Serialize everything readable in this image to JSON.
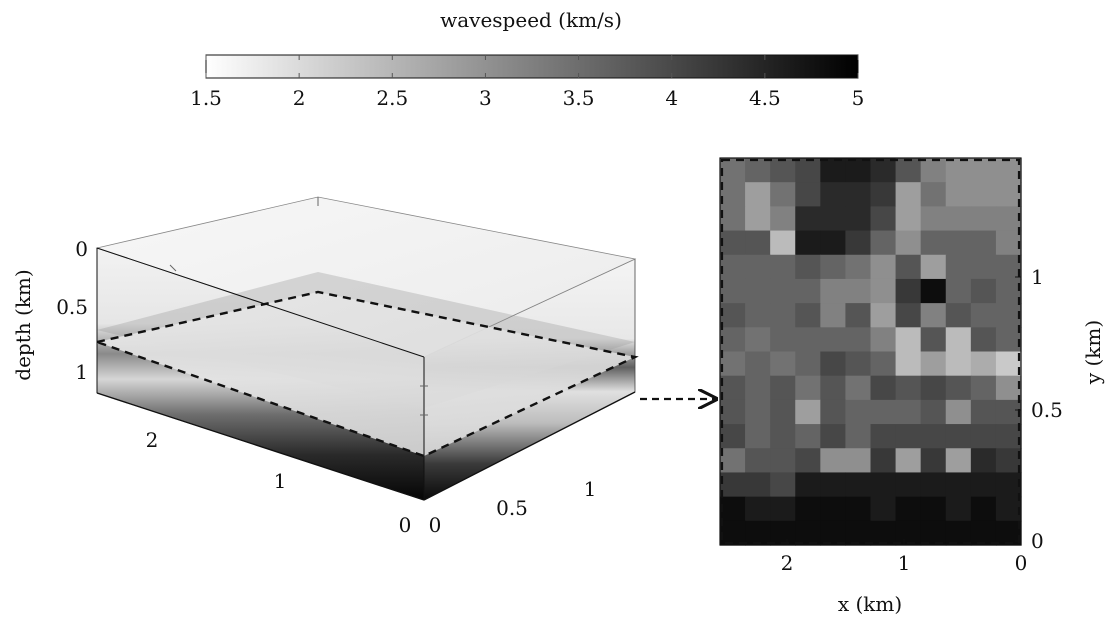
{
  "colorbar": {
    "title": "wavespeed (km/s)",
    "ticks": [
      "1.5",
      "2",
      "2.5",
      "3",
      "3.5",
      "4",
      "4.5",
      "5"
    ],
    "min": 1.5,
    "max": 5,
    "colormap": "grayscale, light = slow, dark = fast",
    "color_low": "#ffffff",
    "color_high": "#000000"
  },
  "volume_3d": {
    "depth_label": "depth (km)",
    "depth_ticks": [
      "0",
      "0.5",
      "1"
    ],
    "x_ticks": [
      "0",
      "1",
      "2"
    ],
    "y_ticks": [
      "0",
      "0.5",
      "1"
    ],
    "slice_outline": "dashed"
  },
  "slice_2d": {
    "xlabel": "x (km)",
    "ylabel": "y (km)",
    "x_ticks": [
      "2",
      "1",
      "0"
    ],
    "y_ticks": [
      "1",
      "0.5",
      "0"
    ],
    "grid_cols": 12,
    "grid_rows": 16
  },
  "connector": "dashed arrow"
}
